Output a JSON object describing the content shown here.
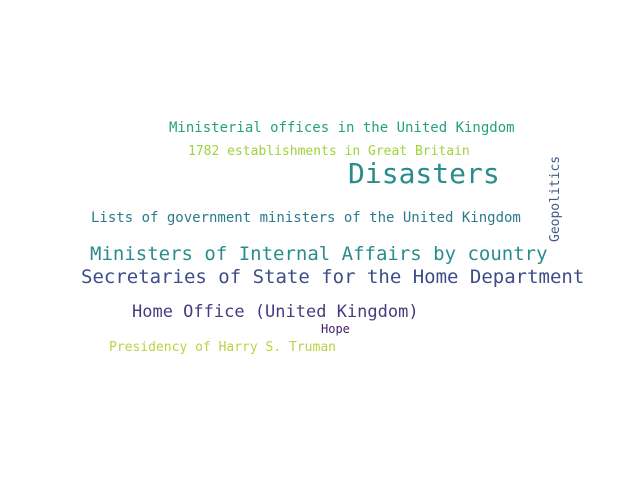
{
  "word_cloud": {
    "words": [
      {
        "id": "ministerial",
        "text": "Ministerial offices in the United Kingdom",
        "color": "#26a083"
      },
      {
        "id": "1782",
        "text": "1782 establishments in Great Britain",
        "color": "#9fd33b"
      },
      {
        "id": "disasters",
        "text": "Disasters",
        "color": "#2a8c8c"
      },
      {
        "id": "lists",
        "text": "Lists of government ministers of the United Kingdom",
        "color": "#2b7b8e"
      },
      {
        "id": "geopolitics",
        "text": "Geopolitics",
        "color": "#3d5a88"
      },
      {
        "id": "internal",
        "text": "Ministers of Internal Affairs by country",
        "color": "#2a8c8c"
      },
      {
        "id": "secretaries",
        "text": "Secretaries of State for the Home Department",
        "color": "#3e4d88"
      },
      {
        "id": "homeoffice",
        "text": "Home Office (United Kingdom)",
        "color": "#433d80"
      },
      {
        "id": "hope",
        "text": "Hope",
        "color": "#46226f"
      },
      {
        "id": "truman",
        "text": "Presidency of Harry S. Truman",
        "color": "#b7d444"
      }
    ]
  }
}
